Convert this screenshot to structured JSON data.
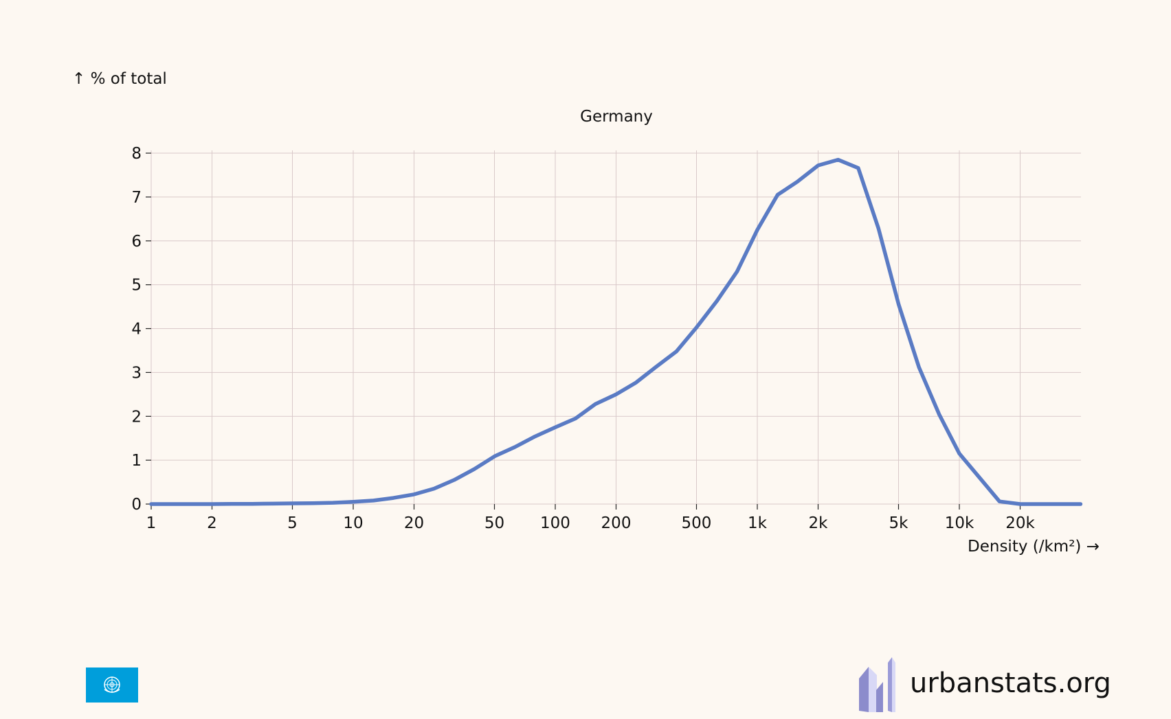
{
  "chart_data": {
    "type": "line",
    "title": "Germany",
    "ylabel": "↑ % of total",
    "xlabel": "Density (/km²) →",
    "x_scale": "log",
    "xlim": [
      1,
      40000
    ],
    "ylim": [
      0,
      8
    ],
    "grid": true,
    "x_ticks": [
      {
        "value": 1,
        "label": "1"
      },
      {
        "value": 2,
        "label": "2"
      },
      {
        "value": 5,
        "label": "5"
      },
      {
        "value": 10,
        "label": "10"
      },
      {
        "value": 20,
        "label": "20"
      },
      {
        "value": 50,
        "label": "50"
      },
      {
        "value": 100,
        "label": "100"
      },
      {
        "value": 200,
        "label": "200"
      },
      {
        "value": 500,
        "label": "500"
      },
      {
        "value": 1000,
        "label": "1k"
      },
      {
        "value": 2000,
        "label": "2k"
      },
      {
        "value": 5000,
        "label": "5k"
      },
      {
        "value": 10000,
        "label": "10k"
      },
      {
        "value": 20000,
        "label": "20k"
      }
    ],
    "y_ticks": [
      0,
      1,
      2,
      3,
      4,
      5,
      6,
      7,
      8
    ],
    "series": [
      {
        "color": "#5a7bc4",
        "points": [
          [
            1,
            0.0
          ],
          [
            1.26,
            0.0
          ],
          [
            1.58,
            0.0
          ],
          [
            2,
            0.0
          ],
          [
            2.51,
            0.005
          ],
          [
            3.16,
            0.005
          ],
          [
            3.98,
            0.01
          ],
          [
            5.01,
            0.015
          ],
          [
            6.31,
            0.02
          ],
          [
            7.94,
            0.03
          ],
          [
            10,
            0.05
          ],
          [
            12.6,
            0.08
          ],
          [
            15.8,
            0.14
          ],
          [
            20,
            0.22
          ],
          [
            25.1,
            0.35
          ],
          [
            31.6,
            0.55
          ],
          [
            39.8,
            0.8
          ],
          [
            50.1,
            1.09
          ],
          [
            63.1,
            1.3
          ],
          [
            79.4,
            1.54
          ],
          [
            100,
            1.75
          ],
          [
            126,
            1.95
          ],
          [
            158,
            2.28
          ],
          [
            200,
            2.5
          ],
          [
            251,
            2.77
          ],
          [
            316,
            3.13
          ],
          [
            398,
            3.48
          ],
          [
            501,
            4.03
          ],
          [
            631,
            4.63
          ],
          [
            794,
            5.3
          ],
          [
            1000,
            6.25
          ],
          [
            1260,
            7.05
          ],
          [
            1580,
            7.35
          ],
          [
            2000,
            7.72
          ],
          [
            2510,
            7.85
          ],
          [
            3160,
            7.66
          ],
          [
            3980,
            6.28
          ],
          [
            5010,
            4.55
          ],
          [
            6310,
            3.12
          ],
          [
            7940,
            2.05
          ],
          [
            10000,
            1.15
          ],
          [
            12600,
            0.6
          ],
          [
            15800,
            0.06
          ],
          [
            20000,
            0.0
          ],
          [
            25100,
            0.0
          ],
          [
            31600,
            0.0
          ],
          [
            39800,
            0.0
          ]
        ]
      }
    ]
  },
  "brand": {
    "text": "urbanstats.org"
  },
  "icons": {
    "flag": "un-flag-icon",
    "logo": "urbanstats-logo-icon"
  }
}
